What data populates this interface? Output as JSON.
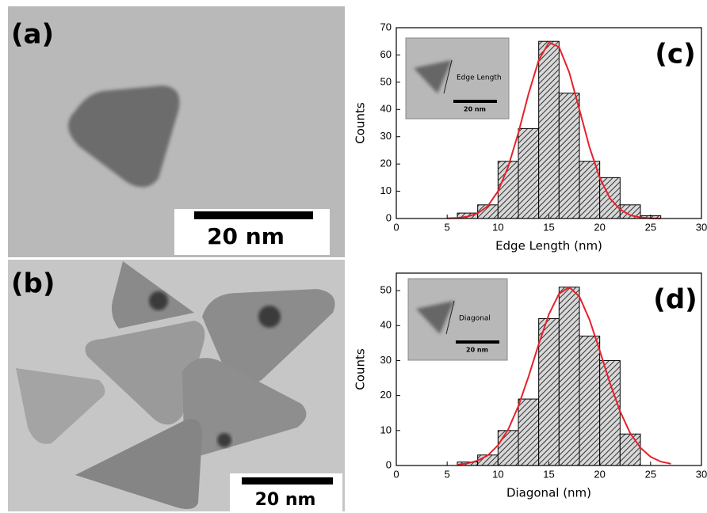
{
  "panels": [
    {
      "label": "(a)",
      "scale_bar": "20 nm"
    },
    {
      "label": "(b)",
      "scale_bar": "20 nm"
    }
  ],
  "chart_data": [
    {
      "type": "histogram",
      "panel_label": "(c)",
      "xlabel": "Edge Length (nm)",
      "ylabel": "Counts",
      "inset_label": "Edge Length",
      "inset_scale_bar": "20 nm",
      "bins": [
        6,
        8,
        10,
        12,
        14,
        16,
        18,
        20,
        22,
        24,
        26
      ],
      "values": [
        2,
        5,
        21,
        33,
        65,
        46,
        21,
        15,
        5,
        1
      ],
      "color": "#9a9a9a",
      "fit_x": [
        5,
        6,
        7,
        8,
        9,
        10,
        11,
        12,
        13,
        14,
        15,
        16,
        17,
        18,
        19,
        20,
        21,
        22,
        23,
        24,
        25,
        26
      ],
      "fit_values": [
        0.1,
        0.2,
        0.7,
        1.9,
        4.6,
        10.0,
        19.0,
        31.4,
        45.7,
        58.1,
        64.6,
        62.9,
        53.6,
        40.0,
        26.1,
        14.9,
        7.4,
        3.3,
        1.2,
        0.4,
        0.1,
        0.0
      ],
      "fit_color": "#e8202a",
      "xlim": [
        0,
        30
      ],
      "xticks": [
        0,
        5,
        10,
        15,
        20,
        25,
        30
      ],
      "ylim": [
        0,
        70
      ],
      "yticks": [
        0,
        10,
        20,
        30,
        40,
        50,
        60,
        70
      ]
    },
    {
      "type": "histogram",
      "panel_label": "(d)",
      "xlabel": "Diagonal (nm)",
      "ylabel": "Counts",
      "inset_label": "Diagonal",
      "inset_scale_bar": "20 nm",
      "bins": [
        6,
        8,
        10,
        12,
        14,
        16,
        18,
        20,
        22,
        24
      ],
      "values": [
        1,
        3,
        10,
        19,
        42,
        51,
        37,
        30,
        9
      ],
      "color": "#9a9a9a",
      "fit_x": [
        6,
        7,
        8,
        9,
        10,
        11,
        12,
        13,
        14,
        15,
        16,
        17,
        18,
        19,
        20,
        21,
        22,
        23,
        24,
        25,
        26,
        27
      ],
      "fit_values": [
        0.2,
        0.6,
        1.4,
        2.9,
        5.8,
        10.3,
        17.0,
        25.4,
        34.7,
        43.2,
        49.1,
        51.0,
        48.3,
        41.7,
        32.8,
        23.6,
        15.5,
        9.2,
        5.1,
        2.5,
        1.1,
        0.5
      ],
      "fit_color": "#e8202a",
      "xlim": [
        0,
        30
      ],
      "xticks": [
        0,
        5,
        10,
        15,
        20,
        25,
        30
      ],
      "ylim": [
        0,
        55
      ],
      "yticks": [
        0,
        10,
        20,
        30,
        40,
        50
      ]
    }
  ]
}
